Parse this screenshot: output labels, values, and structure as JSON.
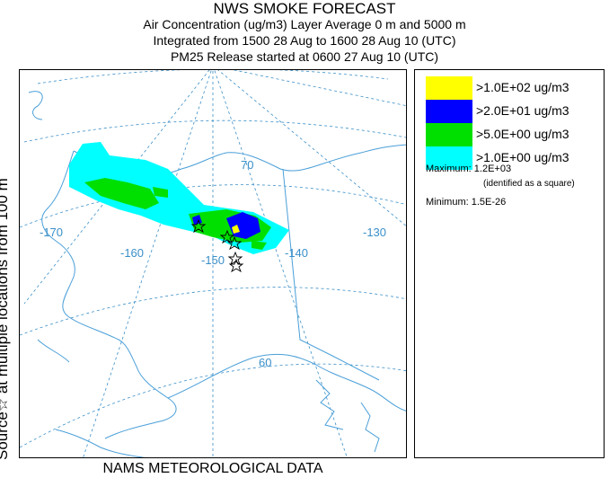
{
  "title": {
    "line1": "NWS SMOKE FORECAST",
    "line2": "Air Concentration (ug/m3) Layer Average    0 m and  5000 m",
    "line3": "Integrated from 1500 28 Aug to 1600 28 Aug 10 (UTC)",
    "line4": "PM25 Release started at 0600 27 Aug 10 (UTC)"
  },
  "side_label": {
    "source_text": "Source",
    "star_glyph": "☆",
    "rest_text": " at multiple locations    from  100 m"
  },
  "legend": [
    {
      "label": ">1.0E+02 ug/m3",
      "color": "#ffff00"
    },
    {
      "label": ">2.0E+01 ug/m3",
      "color": "#0000ff"
    },
    {
      "label": ">5.0E+00 ug/m3",
      "color": "#00e000"
    },
    {
      "label": ">1.0E+00 ug/m3",
      "color": "#00ffff"
    }
  ],
  "stats": {
    "maximum": "Maximum: 1.2E+03",
    "maximum_note": "(identified as a square)",
    "minimum": "Minimum: 1.5E-26"
  },
  "map": {
    "longitude_labels": [
      "-170",
      "-160",
      "-150",
      "-140",
      "-130"
    ],
    "latitude_labels": [
      "70",
      "60"
    ],
    "graticule_color": "#3a8fc8",
    "coast_color": "#4a9fd8",
    "source_marker": "star-icon"
  },
  "footer": "NAMS METEOROLOGICAL DATA"
}
